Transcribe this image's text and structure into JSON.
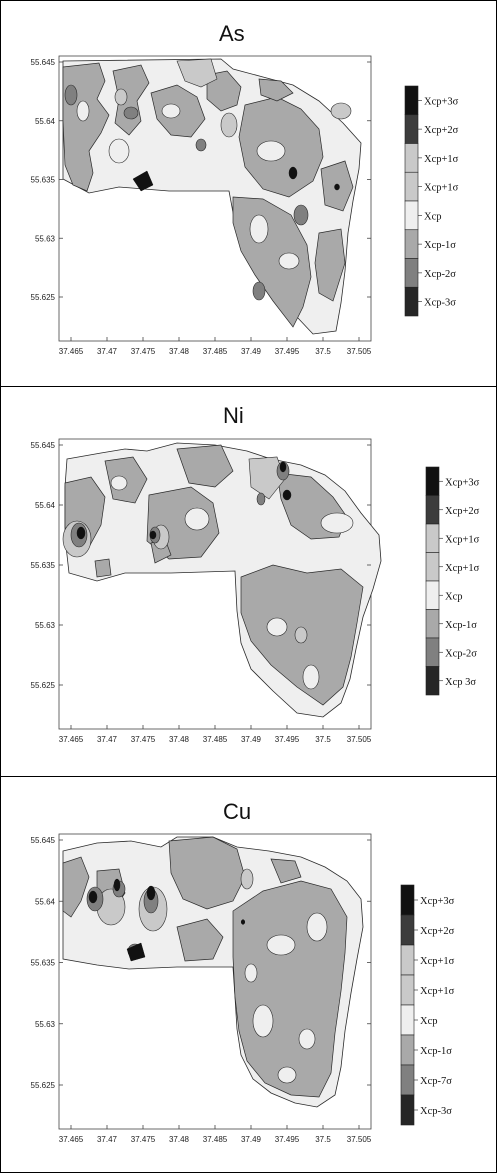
{
  "colors": {
    "plus3": "#111111",
    "plus2": "#3c3c3c",
    "plus1": "#c9c9c9",
    "mean": "#efefef",
    "minus1": "#a9a9a9",
    "minus2": "#808080",
    "minus3": "#262626",
    "outline": "#2a2a2a"
  },
  "panels": [
    {
      "title": "As",
      "xticks": [
        "37.465",
        "37.47",
        "37.475",
        "37.48",
        "37.485",
        "37.49",
        "37.495",
        "37.5",
        "37.505"
      ],
      "yticks": [
        "55.645",
        "55.64",
        "55.635",
        "55.63",
        "55.625"
      ],
      "legend": [
        "Xcp+3σ",
        "Xcp+2σ",
        "Xcp+1σ",
        "Xcp+1σ",
        "Xcp",
        "Xcp-1σ",
        "Xcp-2σ",
        "Xcp-3σ"
      ]
    },
    {
      "title": "Ni",
      "xticks": [
        "37.465",
        "37.47",
        "37.475",
        "37.48",
        "37.485",
        "37.49",
        "37.495",
        "37.5",
        "37.505"
      ],
      "yticks": [
        "55.645",
        "55.64",
        "55.635",
        "55.63",
        "55.625"
      ],
      "legend": [
        "Xcp+3σ",
        "Xcp+2σ",
        "Xcp+1σ",
        "Xcp+1σ",
        "Xcp",
        "Xcp-1σ",
        "Xcp-2σ",
        "Xcp 3σ"
      ]
    },
    {
      "title": "Cu",
      "xticks": [
        "37.465",
        "37.47",
        "37.475",
        "37.48",
        "37.485",
        "37.49",
        "37.495",
        "37.5",
        "37.505"
      ],
      "yticks": [
        "55.645",
        "55.64",
        "55.635",
        "55.63",
        "55.625"
      ],
      "legend": [
        "Xcp+3σ",
        "Xcp+2σ",
        "Xcp+1σ",
        "Xcp+1σ",
        "Xcp",
        "Xcp-1σ",
        "Xcp-7σ",
        "Xcp-3σ"
      ]
    }
  ]
}
